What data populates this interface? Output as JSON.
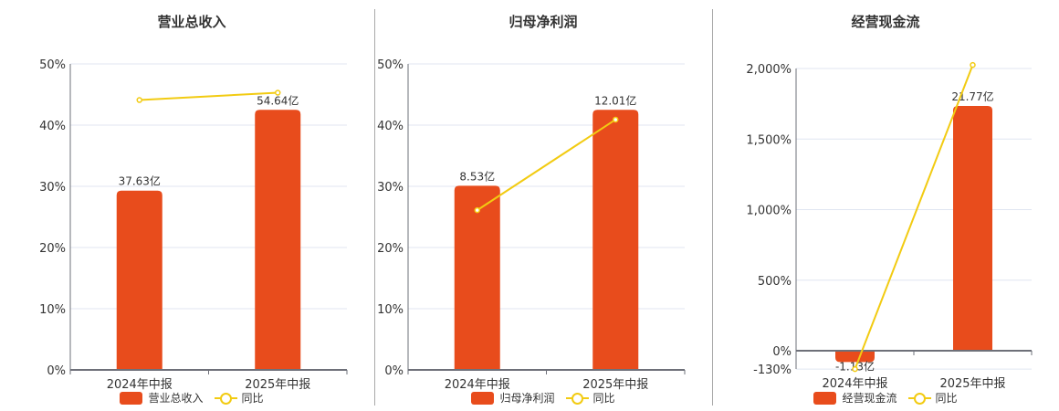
{
  "colors": {
    "bar": "#e84c1c",
    "line": "#f2cb12",
    "grid": "#e0e6f1",
    "axis": "#6e7079",
    "text": "#333333"
  },
  "legend": {
    "yoy_label": "同比"
  },
  "chart_data": [
    {
      "type": "bar+line",
      "title": "营业总收入",
      "categories": [
        "2024年中报",
        "2025年中报"
      ],
      "series": [
        {
          "name": "营业总收入",
          "type": "bar",
          "values": [
            37.63,
            54.64
          ],
          "labels": [
            "37.63亿",
            "54.64亿"
          ],
          "unit": "亿"
        },
        {
          "name": "同比",
          "type": "line",
          "values": [
            44.1,
            45.3
          ],
          "unit": "%"
        }
      ],
      "y_ticks": [
        "0%",
        "10%",
        "20%",
        "30%",
        "40%",
        "50%"
      ],
      "ylim": [
        0,
        50
      ],
      "bar_heights_pct": [
        29.3,
        42.5
      ],
      "grid": true,
      "legend_position": "bottom"
    },
    {
      "type": "bar+line",
      "title": "归母净利润",
      "categories": [
        "2024年中报",
        "2025年中报"
      ],
      "series": [
        {
          "name": "归母净利润",
          "type": "bar",
          "values": [
            8.53,
            12.01
          ],
          "labels": [
            "8.53亿",
            "12.01亿"
          ],
          "unit": "亿"
        },
        {
          "name": "同比",
          "type": "line",
          "values": [
            26.1,
            40.9
          ],
          "unit": "%"
        }
      ],
      "y_ticks": [
        "0%",
        "10%",
        "20%",
        "30%",
        "40%",
        "50%"
      ],
      "ylim": [
        0,
        50
      ],
      "bar_heights_pct": [
        30.1,
        42.5
      ],
      "grid": true,
      "legend_position": "bottom"
    },
    {
      "type": "bar+line",
      "title": "经营现金流",
      "categories": [
        "2024年中报",
        "2025年中报"
      ],
      "series": [
        {
          "name": "经营现金流",
          "type": "bar",
          "values": [
            -1.13,
            21.77
          ],
          "labels": [
            "-1.13亿",
            "21.77亿"
          ],
          "unit": "亿"
        },
        {
          "name": "同比",
          "type": "line",
          "values": [
            -130,
            2025
          ],
          "unit": "%"
        }
      ],
      "y_ticks": [
        "-130%",
        "0%",
        "500%",
        "1,000%",
        "1,500%",
        "2,000%"
      ],
      "ylim": [
        -130,
        2000
      ],
      "bar_heights_pct": [
        -80,
        1735
      ],
      "grid": true,
      "legend_position": "bottom"
    }
  ]
}
